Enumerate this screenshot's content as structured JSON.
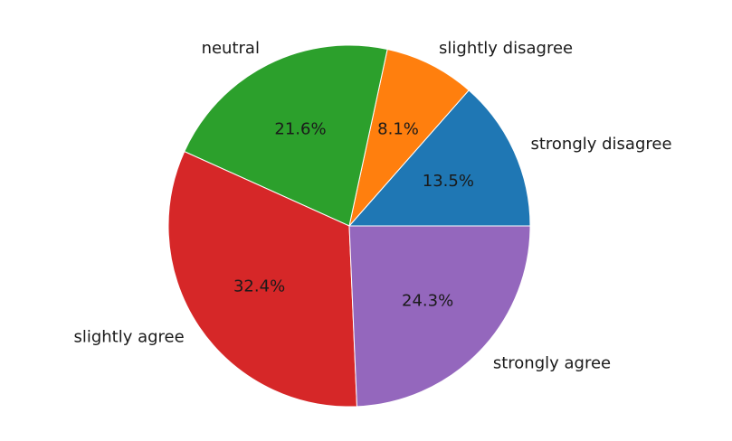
{
  "chart_data": {
    "type": "pie",
    "categories": [
      "strongly disagree",
      "slightly disagree",
      "neutral",
      "slightly agree",
      "strongly agree"
    ],
    "values": [
      13.5,
      8.1,
      21.6,
      32.4,
      24.3
    ],
    "value_labels": [
      "13.5%",
      "8.1%",
      "21.6%",
      "32.4%",
      "24.3%"
    ],
    "colors": [
      "#1f77b4",
      "#ff7f0e",
      "#2ca02c",
      "#d62728",
      "#9467bd"
    ],
    "start_angle_deg": 0,
    "direction": "counterclockwise",
    "legend": "none"
  }
}
